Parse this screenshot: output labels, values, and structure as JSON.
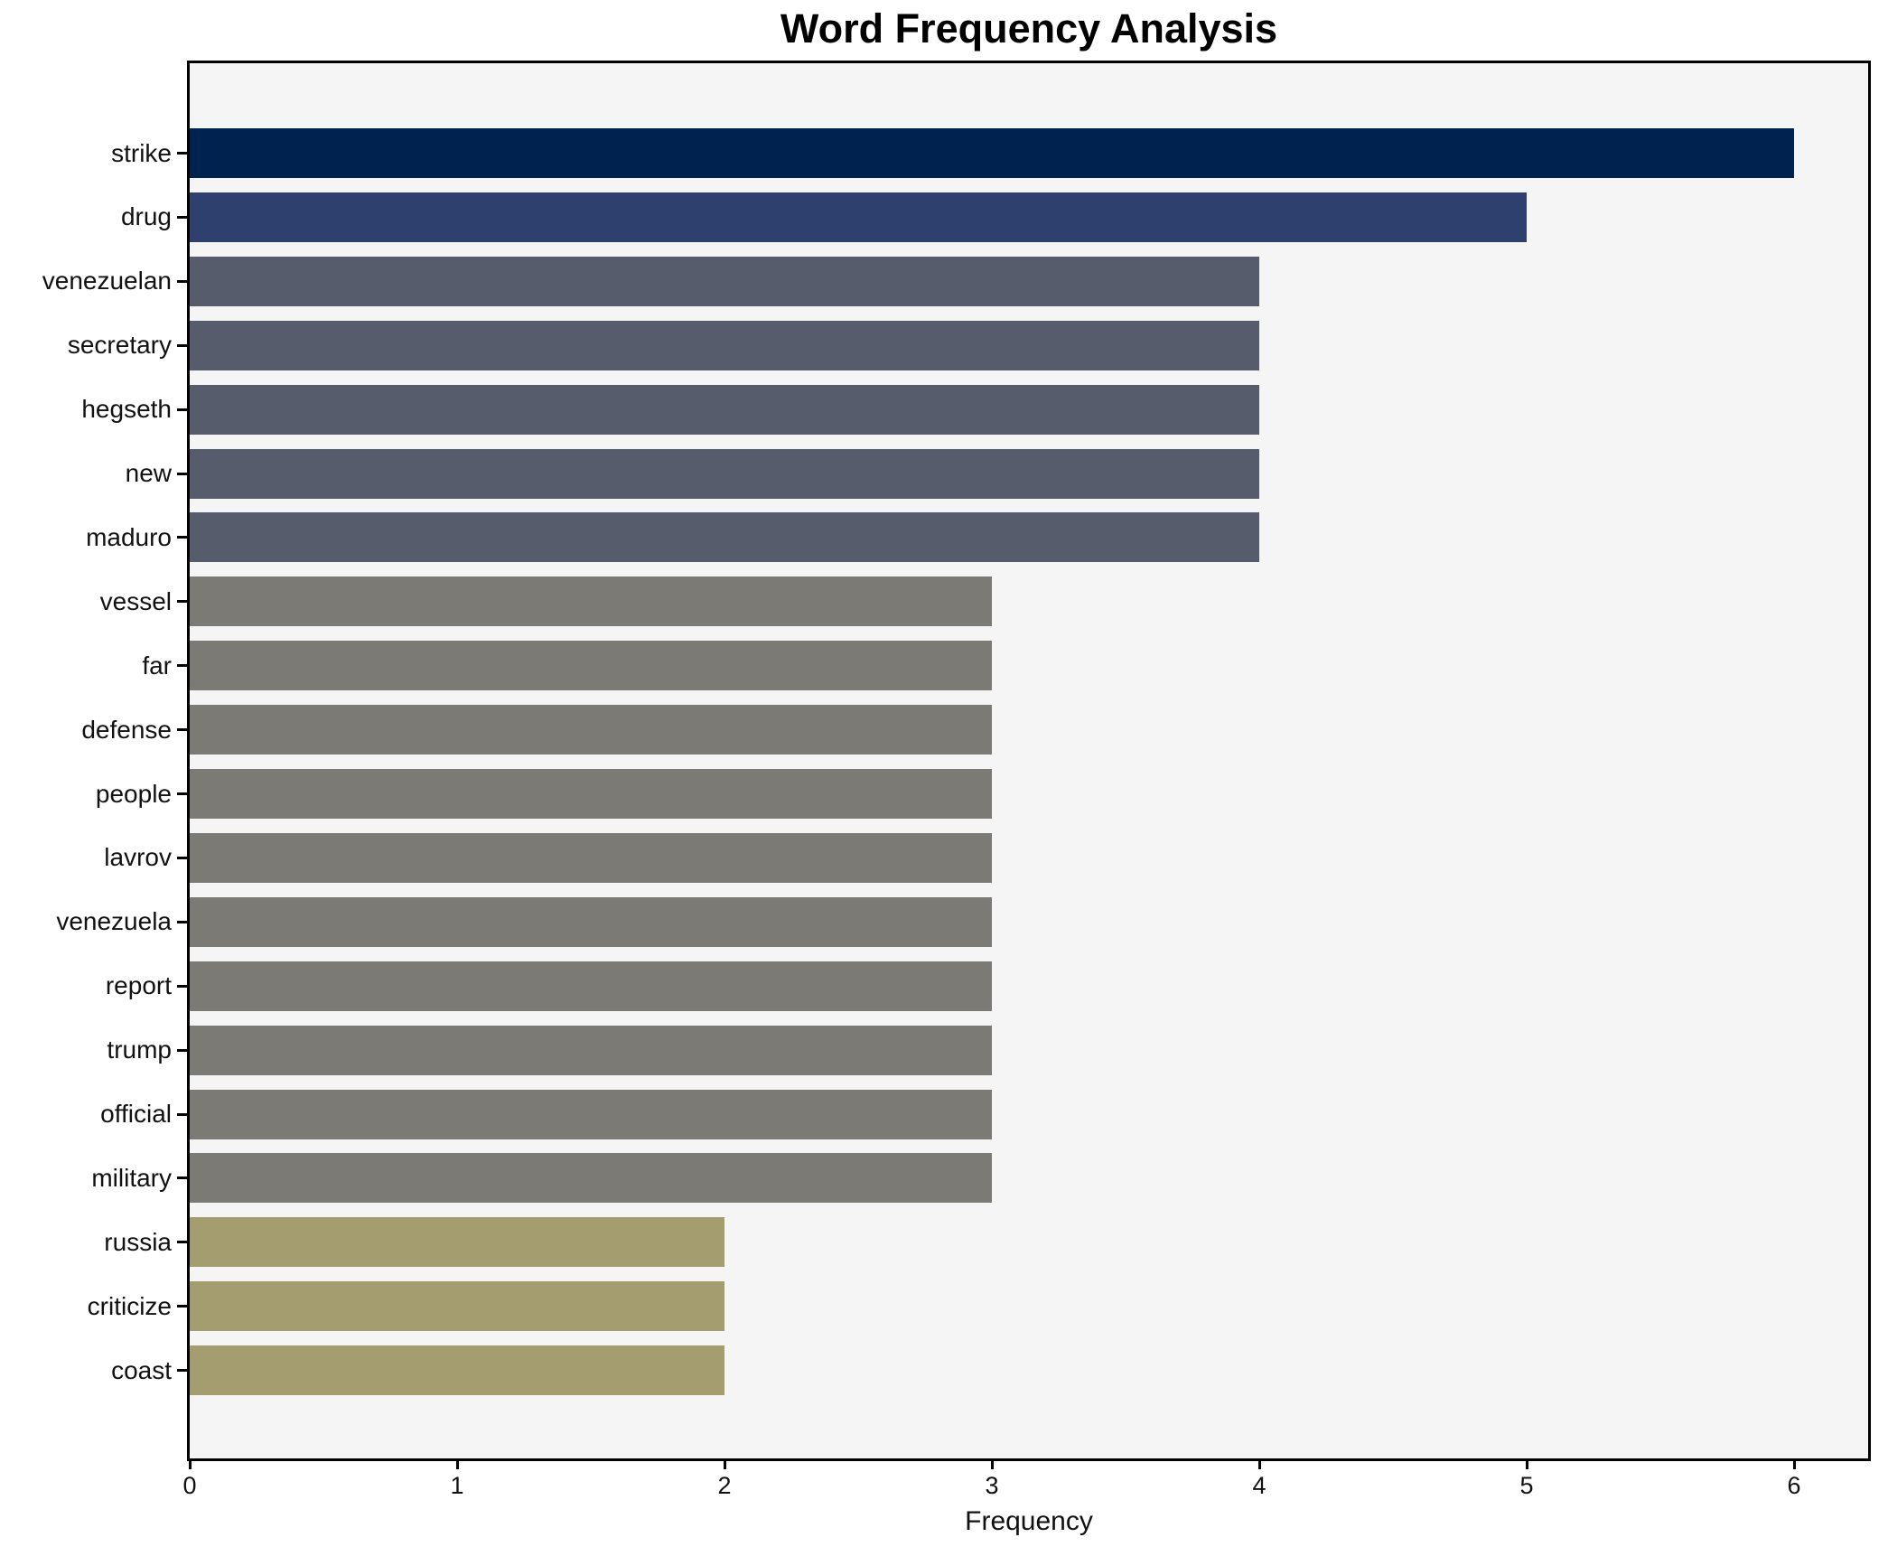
{
  "title": "Word Frequency Analysis",
  "xlabel": "Frequency",
  "chart_data": {
    "type": "bar",
    "orientation": "horizontal",
    "title": "Word Frequency Analysis",
    "xlabel": "Frequency",
    "ylabel": "",
    "categories": [
      "strike",
      "drug",
      "venezuelan",
      "secretary",
      "hegseth",
      "new",
      "maduro",
      "vessel",
      "far",
      "defense",
      "people",
      "lavrov",
      "venezuela",
      "report",
      "trump",
      "official",
      "military",
      "russia",
      "criticize",
      "coast"
    ],
    "values": [
      6,
      5,
      4,
      4,
      4,
      4,
      4,
      3,
      3,
      3,
      3,
      3,
      3,
      3,
      3,
      3,
      3,
      2,
      2,
      2
    ],
    "x_ticks": [
      0,
      1,
      2,
      3,
      4,
      5,
      6
    ],
    "xlim": [
      0,
      6.28
    ],
    "grid": false,
    "legend": "none",
    "plot_background": "#f5f5f6",
    "figure_background": "#ffffff",
    "bar_colors_by_value": {
      "6": "#00224e",
      "5": "#2e406e",
      "4": "#575c6d",
      "3": "#7b7a75",
      "2": "#a49d70"
    }
  }
}
